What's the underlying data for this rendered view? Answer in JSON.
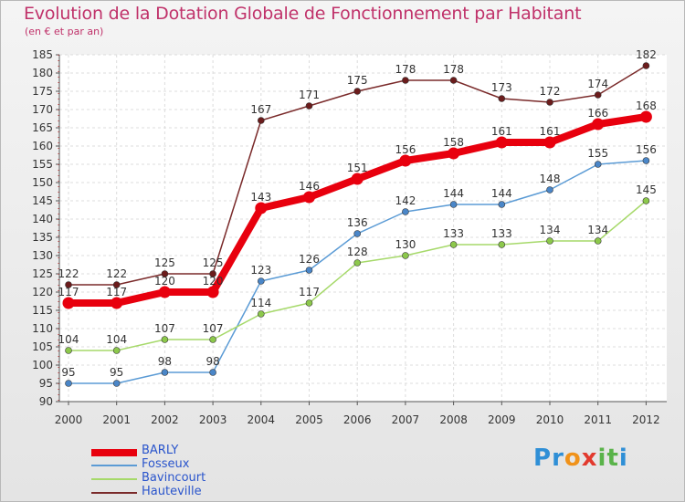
{
  "title": "Evolution de la Dotation Globale de Fonctionnement par Habitant",
  "subtitle": "(en € et par an)",
  "logo": {
    "letters": [
      "P",
      "r",
      "o",
      "x",
      "i",
      "t",
      "i"
    ],
    "colors": [
      "#2f8fd6",
      "#2f8fd6",
      "#f0921a",
      "#e23a2e",
      "#5ab34a",
      "#5ab34a",
      "#2f8fd6"
    ]
  },
  "chart_data": {
    "type": "line",
    "title": "Evolution de la Dotation Globale de Fonctionnement par Habitant",
    "subtitle": "(en € et par an)",
    "xlabel": "",
    "ylabel": "",
    "x": [
      "2000",
      "2001",
      "2002",
      "2003",
      "2004",
      "2005",
      "2006",
      "2007",
      "2008",
      "2009",
      "2010",
      "2011",
      "2012"
    ],
    "ylim": [
      90,
      185
    ],
    "yticks": [
      90,
      95,
      100,
      105,
      110,
      115,
      120,
      125,
      130,
      135,
      140,
      145,
      150,
      155,
      160,
      165,
      170,
      175,
      180,
      185
    ],
    "grid": true,
    "legend_position": "bottom-left",
    "series": [
      {
        "name": "BARLY",
        "color": "#e8000e",
        "values": [
          117,
          117,
          120,
          120,
          143,
          146,
          151,
          156,
          158,
          161,
          161,
          166,
          168
        ]
      },
      {
        "name": "Fosseux",
        "color": "#5b9bd5",
        "values": [
          95,
          95,
          98,
          98,
          123,
          126,
          136,
          142,
          144,
          144,
          148,
          155,
          156
        ]
      },
      {
        "name": "Bavincourt",
        "color": "#a6d96a",
        "values": [
          104,
          104,
          107,
          107,
          114,
          117,
          128,
          130,
          133,
          133,
          134,
          134,
          145
        ]
      },
      {
        "name": "Hauteville",
        "color": "#7a2a2a",
        "values": [
          122,
          122,
          125,
          125,
          167,
          171,
          175,
          178,
          178,
          173,
          172,
          174,
          182
        ]
      }
    ]
  }
}
